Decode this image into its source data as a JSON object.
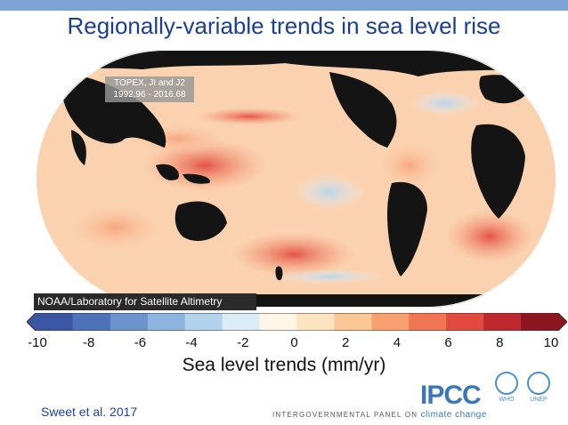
{
  "slide": {
    "title": "Regionally-variable trends in sea level rise",
    "citation": "Sweet et al. 2017"
  },
  "map": {
    "satellite_label_line1": "TOPEX, JI and J2",
    "satellite_label_line2": "1992.96 - 2016.68",
    "credit": "NOAA/Laboratory for Satellite Altimetry"
  },
  "colorbar": {
    "label": "Sea level trends (mm/yr)",
    "ticks": [
      "-10",
      "-8",
      "-6",
      "-4",
      "-2",
      "0",
      "2",
      "4",
      "6",
      "8",
      "10"
    ],
    "colors": [
      "#3b56a4",
      "#4e72b8",
      "#6b93cc",
      "#8cb4de",
      "#b3d2ec",
      "#dcecf7",
      "#fdf5e6",
      "#fde3bf",
      "#fcc796",
      "#f8a06e",
      "#ef7553",
      "#df4a3c",
      "#c0282f",
      "#8d1520"
    ]
  },
  "logos": {
    "ipcc": "IPCC",
    "ipcc_subtitle_prefix": "INTERGOVERNMENTAL PANEL ON",
    "ipcc_subtitle_accent": "climate change",
    "who": "WHO",
    "unep": "UNEP"
  }
}
